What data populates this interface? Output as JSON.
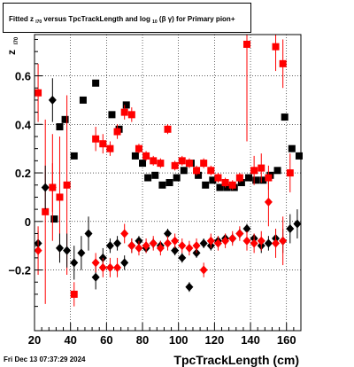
{
  "title": {
    "prefix": "Fitted  z",
    "z_sub": "I70",
    "mid": "  versus TpcTrackLength and log",
    "log_sub": "10",
    "suffix": "(β  γ) for Primary pion+"
  },
  "timestamp": "Fri Dec 13 07:37:29 2024",
  "chart_data": {
    "type": "scatter",
    "title": "Fitted z_I70 versus TpcTrackLength and log10(β γ) for Primary pion+",
    "xlabel": "TpcTrackLength (cm)",
    "ylabel": "z",
    "ylabel_sub": "I70",
    "xlim": [
      20,
      168
    ],
    "ylim": [
      -0.45,
      0.77
    ],
    "x_ticks": [
      20,
      40,
      60,
      80,
      100,
      120,
      140,
      160
    ],
    "x_tick_labels": [
      "20",
      "40",
      "60",
      "80",
      "100",
      "120",
      "140",
      "160"
    ],
    "y_ticks": [
      -0.2,
      0,
      0.2,
      0.4,
      0.6
    ],
    "y_tick_labels": [
      "−0.2",
      "0",
      "0.2",
      "0.4",
      "0.6"
    ],
    "grid": true,
    "series": [
      {
        "name": "",
        "marker": "square",
        "color": "#000000",
        "points": [
          {
            "x": 31,
            "y": 0.01,
            "err": 0
          },
          {
            "x": 34,
            "y": 0.39,
            "err": 0
          },
          {
            "x": 37,
            "y": 0.42,
            "err": 0
          },
          {
            "x": 42,
            "y": 0.27,
            "err": 0
          },
          {
            "x": 47,
            "y": 0.5,
            "err": 0
          },
          {
            "x": 54,
            "y": 0.57,
            "err": 0
          },
          {
            "x": 63,
            "y": 0.44,
            "err": 0
          },
          {
            "x": 67,
            "y": 0.38,
            "err": 0
          },
          {
            "x": 71,
            "y": 0.48,
            "err": 0
          },
          {
            "x": 76,
            "y": 0.27,
            "err": 0
          },
          {
            "x": 80,
            "y": 0.24,
            "err": 0
          },
          {
            "x": 83,
            "y": 0.18,
            "err": 0
          },
          {
            "x": 87,
            "y": 0.19,
            "err": 0
          },
          {
            "x": 91,
            "y": 0.15,
            "err": 0
          },
          {
            "x": 95,
            "y": 0.16,
            "err": 0
          },
          {
            "x": 99,
            "y": 0.18,
            "err": 0
          },
          {
            "x": 103,
            "y": 0.21,
            "err": 0
          },
          {
            "x": 107,
            "y": 0.24,
            "err": 0
          },
          {
            "x": 111,
            "y": 0.19,
            "err": 0
          },
          {
            "x": 115,
            "y": 0.15,
            "err": 0
          },
          {
            "x": 119,
            "y": 0.17,
            "err": 0
          },
          {
            "x": 123,
            "y": 0.14,
            "err": 0
          },
          {
            "x": 127,
            "y": 0.14,
            "err": 0
          },
          {
            "x": 131,
            "y": 0.14,
            "err": 0
          },
          {
            "x": 135,
            "y": 0.16,
            "err": 0
          },
          {
            "x": 139,
            "y": 0.18,
            "err": 0
          },
          {
            "x": 143,
            "y": 0.17,
            "err": 0
          },
          {
            "x": 147,
            "y": 0.17,
            "err": 0
          },
          {
            "x": 151,
            "y": 0.19,
            "err": 0
          },
          {
            "x": 155,
            "y": 0.21,
            "err": 0
          },
          {
            "x": 159,
            "y": 0.43,
            "err": 0
          },
          {
            "x": 163,
            "y": 0.3,
            "err": 0
          },
          {
            "x": 167,
            "y": 0.27,
            "err": 0
          }
        ]
      },
      {
        "name": "",
        "marker": "square",
        "color": "#ff0000",
        "points": [
          {
            "x": 22,
            "y": 0.53,
            "err": 0.12
          },
          {
            "x": 26,
            "y": 0.04,
            "err": 0.38
          },
          {
            "x": 30,
            "y": 0.14,
            "err": 0.22
          },
          {
            "x": 34,
            "y": 0.1,
            "err": 0.25
          },
          {
            "x": 38,
            "y": 0.15,
            "err": 0.37
          },
          {
            "x": 42,
            "y": -0.3,
            "err": 0.05
          },
          {
            "x": 54,
            "y": 0.34,
            "err": 0.05
          },
          {
            "x": 58,
            "y": 0.32,
            "err": 0.04
          },
          {
            "x": 62,
            "y": 0.3,
            "err": 0.03
          },
          {
            "x": 66,
            "y": 0.37,
            "err": 0.03
          },
          {
            "x": 70,
            "y": 0.45,
            "err": 0.03
          },
          {
            "x": 74,
            "y": 0.44,
            "err": 0.03
          },
          {
            "x": 78,
            "y": 0.3,
            "err": 0.02
          },
          {
            "x": 82,
            "y": 0.27,
            "err": 0.02
          },
          {
            "x": 86,
            "y": 0.25,
            "err": 0.02
          },
          {
            "x": 90,
            "y": 0.24,
            "err": 0.02
          },
          {
            "x": 94,
            "y": 0.38,
            "err": 0.02
          },
          {
            "x": 98,
            "y": 0.23,
            "err": 0.02
          },
          {
            "x": 102,
            "y": 0.25,
            "err": 0.02
          },
          {
            "x": 106,
            "y": 0.24,
            "err": 0.02
          },
          {
            "x": 110,
            "y": 0.21,
            "err": 0.02
          },
          {
            "x": 114,
            "y": 0.24,
            "err": 0.02
          },
          {
            "x": 118,
            "y": 0.21,
            "err": 0.02
          },
          {
            "x": 122,
            "y": 0.18,
            "err": 0.02
          },
          {
            "x": 126,
            "y": 0.16,
            "err": 0.02
          },
          {
            "x": 130,
            "y": 0.15,
            "err": 0.02
          },
          {
            "x": 134,
            "y": 0.18,
            "err": 0.02
          },
          {
            "x": 138,
            "y": 0.73,
            "err": 0.4
          },
          {
            "x": 142,
            "y": 0.21,
            "err": 0.06
          },
          {
            "x": 146,
            "y": 0.22,
            "err": 0.06
          },
          {
            "x": 150,
            "y": 0.18,
            "err": 0.05
          },
          {
            "x": 154,
            "y": 0.72,
            "err": 0.1
          },
          {
            "x": 158,
            "y": 0.65,
            "err": 0.1
          },
          {
            "x": 162,
            "y": 0.2,
            "err": 0.08
          }
        ]
      },
      {
        "name": "",
        "marker": "diamond",
        "color": "#000000",
        "points": [
          {
            "x": 22,
            "y": -0.09,
            "err": 0.05
          },
          {
            "x": 26,
            "y": 0.14,
            "err": 0.09
          },
          {
            "x": 30,
            "y": 0.5,
            "err": 0.09
          },
          {
            "x": 34,
            "y": -0.11,
            "err": 0.06
          },
          {
            "x": 38,
            "y": -0.12,
            "err": 0.07
          },
          {
            "x": 42,
            "y": -0.17,
            "err": 0.07
          },
          {
            "x": 46,
            "y": -0.13,
            "err": 0.07
          },
          {
            "x": 50,
            "y": -0.05,
            "err": 0.07
          },
          {
            "x": 54,
            "y": -0.23,
            "err": 0.05
          },
          {
            "x": 58,
            "y": -0.15,
            "err": 0.04
          },
          {
            "x": 62,
            "y": -0.1,
            "err": 0.03
          },
          {
            "x": 66,
            "y": -0.09,
            "err": 0.03
          },
          {
            "x": 70,
            "y": -0.17,
            "err": 0.03
          },
          {
            "x": 74,
            "y": -0.1,
            "err": 0.03
          },
          {
            "x": 78,
            "y": -0.08,
            "err": 0.02
          },
          {
            "x": 82,
            "y": -0.11,
            "err": 0.02
          },
          {
            "x": 86,
            "y": -0.09,
            "err": 0.02
          },
          {
            "x": 90,
            "y": -0.1,
            "err": 0.02
          },
          {
            "x": 94,
            "y": -0.05,
            "err": 0.02
          },
          {
            "x": 98,
            "y": -0.12,
            "err": 0.02
          },
          {
            "x": 102,
            "y": -0.15,
            "err": 0.02
          },
          {
            "x": 106,
            "y": -0.27,
            "err": 0.02
          },
          {
            "x": 110,
            "y": -0.13,
            "err": 0.02
          },
          {
            "x": 114,
            "y": -0.09,
            "err": 0.02
          },
          {
            "x": 118,
            "y": -0.1,
            "err": 0.02
          },
          {
            "x": 122,
            "y": -0.08,
            "err": 0.02
          },
          {
            "x": 126,
            "y": -0.07,
            "err": 0.02
          },
          {
            "x": 130,
            "y": -0.07,
            "err": 0.02
          },
          {
            "x": 134,
            "y": -0.05,
            "err": 0.02
          },
          {
            "x": 138,
            "y": -0.03,
            "err": 0.02
          },
          {
            "x": 142,
            "y": -0.07,
            "err": 0.02
          },
          {
            "x": 146,
            "y": -0.1,
            "err": 0.03
          },
          {
            "x": 150,
            "y": -0.09,
            "err": 0.03
          },
          {
            "x": 154,
            "y": -0.07,
            "err": 0.04
          },
          {
            "x": 158,
            "y": -0.08,
            "err": 0.05
          },
          {
            "x": 162,
            "y": -0.03,
            "err": 0.06
          },
          {
            "x": 166,
            "y": -0.01,
            "err": 0.06
          }
        ]
      },
      {
        "name": "",
        "marker": "diamond",
        "color": "#ff0000",
        "points": [
          {
            "x": 22,
            "y": -0.12,
            "err": 0.1
          },
          {
            "x": 30,
            "y": 0.14,
            "err": 0.1
          },
          {
            "x": 54,
            "y": -0.17,
            "err": 0.04
          },
          {
            "x": 58,
            "y": -0.19,
            "err": 0.04
          },
          {
            "x": 62,
            "y": -0.19,
            "err": 0.04
          },
          {
            "x": 66,
            "y": -0.19,
            "err": 0.04
          },
          {
            "x": 70,
            "y": -0.05,
            "err": 0.04
          },
          {
            "x": 74,
            "y": -0.1,
            "err": 0.03
          },
          {
            "x": 78,
            "y": -0.11,
            "err": 0.03
          },
          {
            "x": 82,
            "y": -0.1,
            "err": 0.03
          },
          {
            "x": 86,
            "y": -0.09,
            "err": 0.03
          },
          {
            "x": 90,
            "y": -0.11,
            "err": 0.03
          },
          {
            "x": 94,
            "y": -0.09,
            "err": 0.03
          },
          {
            "x": 98,
            "y": -0.08,
            "err": 0.03
          },
          {
            "x": 102,
            "y": -0.1,
            "err": 0.03
          },
          {
            "x": 106,
            "y": -0.11,
            "err": 0.03
          },
          {
            "x": 110,
            "y": -0.1,
            "err": 0.03
          },
          {
            "x": 114,
            "y": -0.2,
            "err": 0.03
          },
          {
            "x": 118,
            "y": -0.08,
            "err": 0.03
          },
          {
            "x": 122,
            "y": -0.09,
            "err": 0.03
          },
          {
            "x": 126,
            "y": -0.08,
            "err": 0.03
          },
          {
            "x": 130,
            "y": -0.07,
            "err": 0.03
          },
          {
            "x": 134,
            "y": -0.05,
            "err": 0.03
          },
          {
            "x": 138,
            "y": -0.08,
            "err": 0.04
          },
          {
            "x": 142,
            "y": -0.09,
            "err": 0.04
          },
          {
            "x": 146,
            "y": -0.08,
            "err": 0.04
          },
          {
            "x": 150,
            "y": 0.08,
            "err": 0.1
          },
          {
            "x": 154,
            "y": -0.09,
            "err": 0.06
          },
          {
            "x": 158,
            "y": -0.08,
            "err": 0.1
          }
        ]
      }
    ]
  }
}
